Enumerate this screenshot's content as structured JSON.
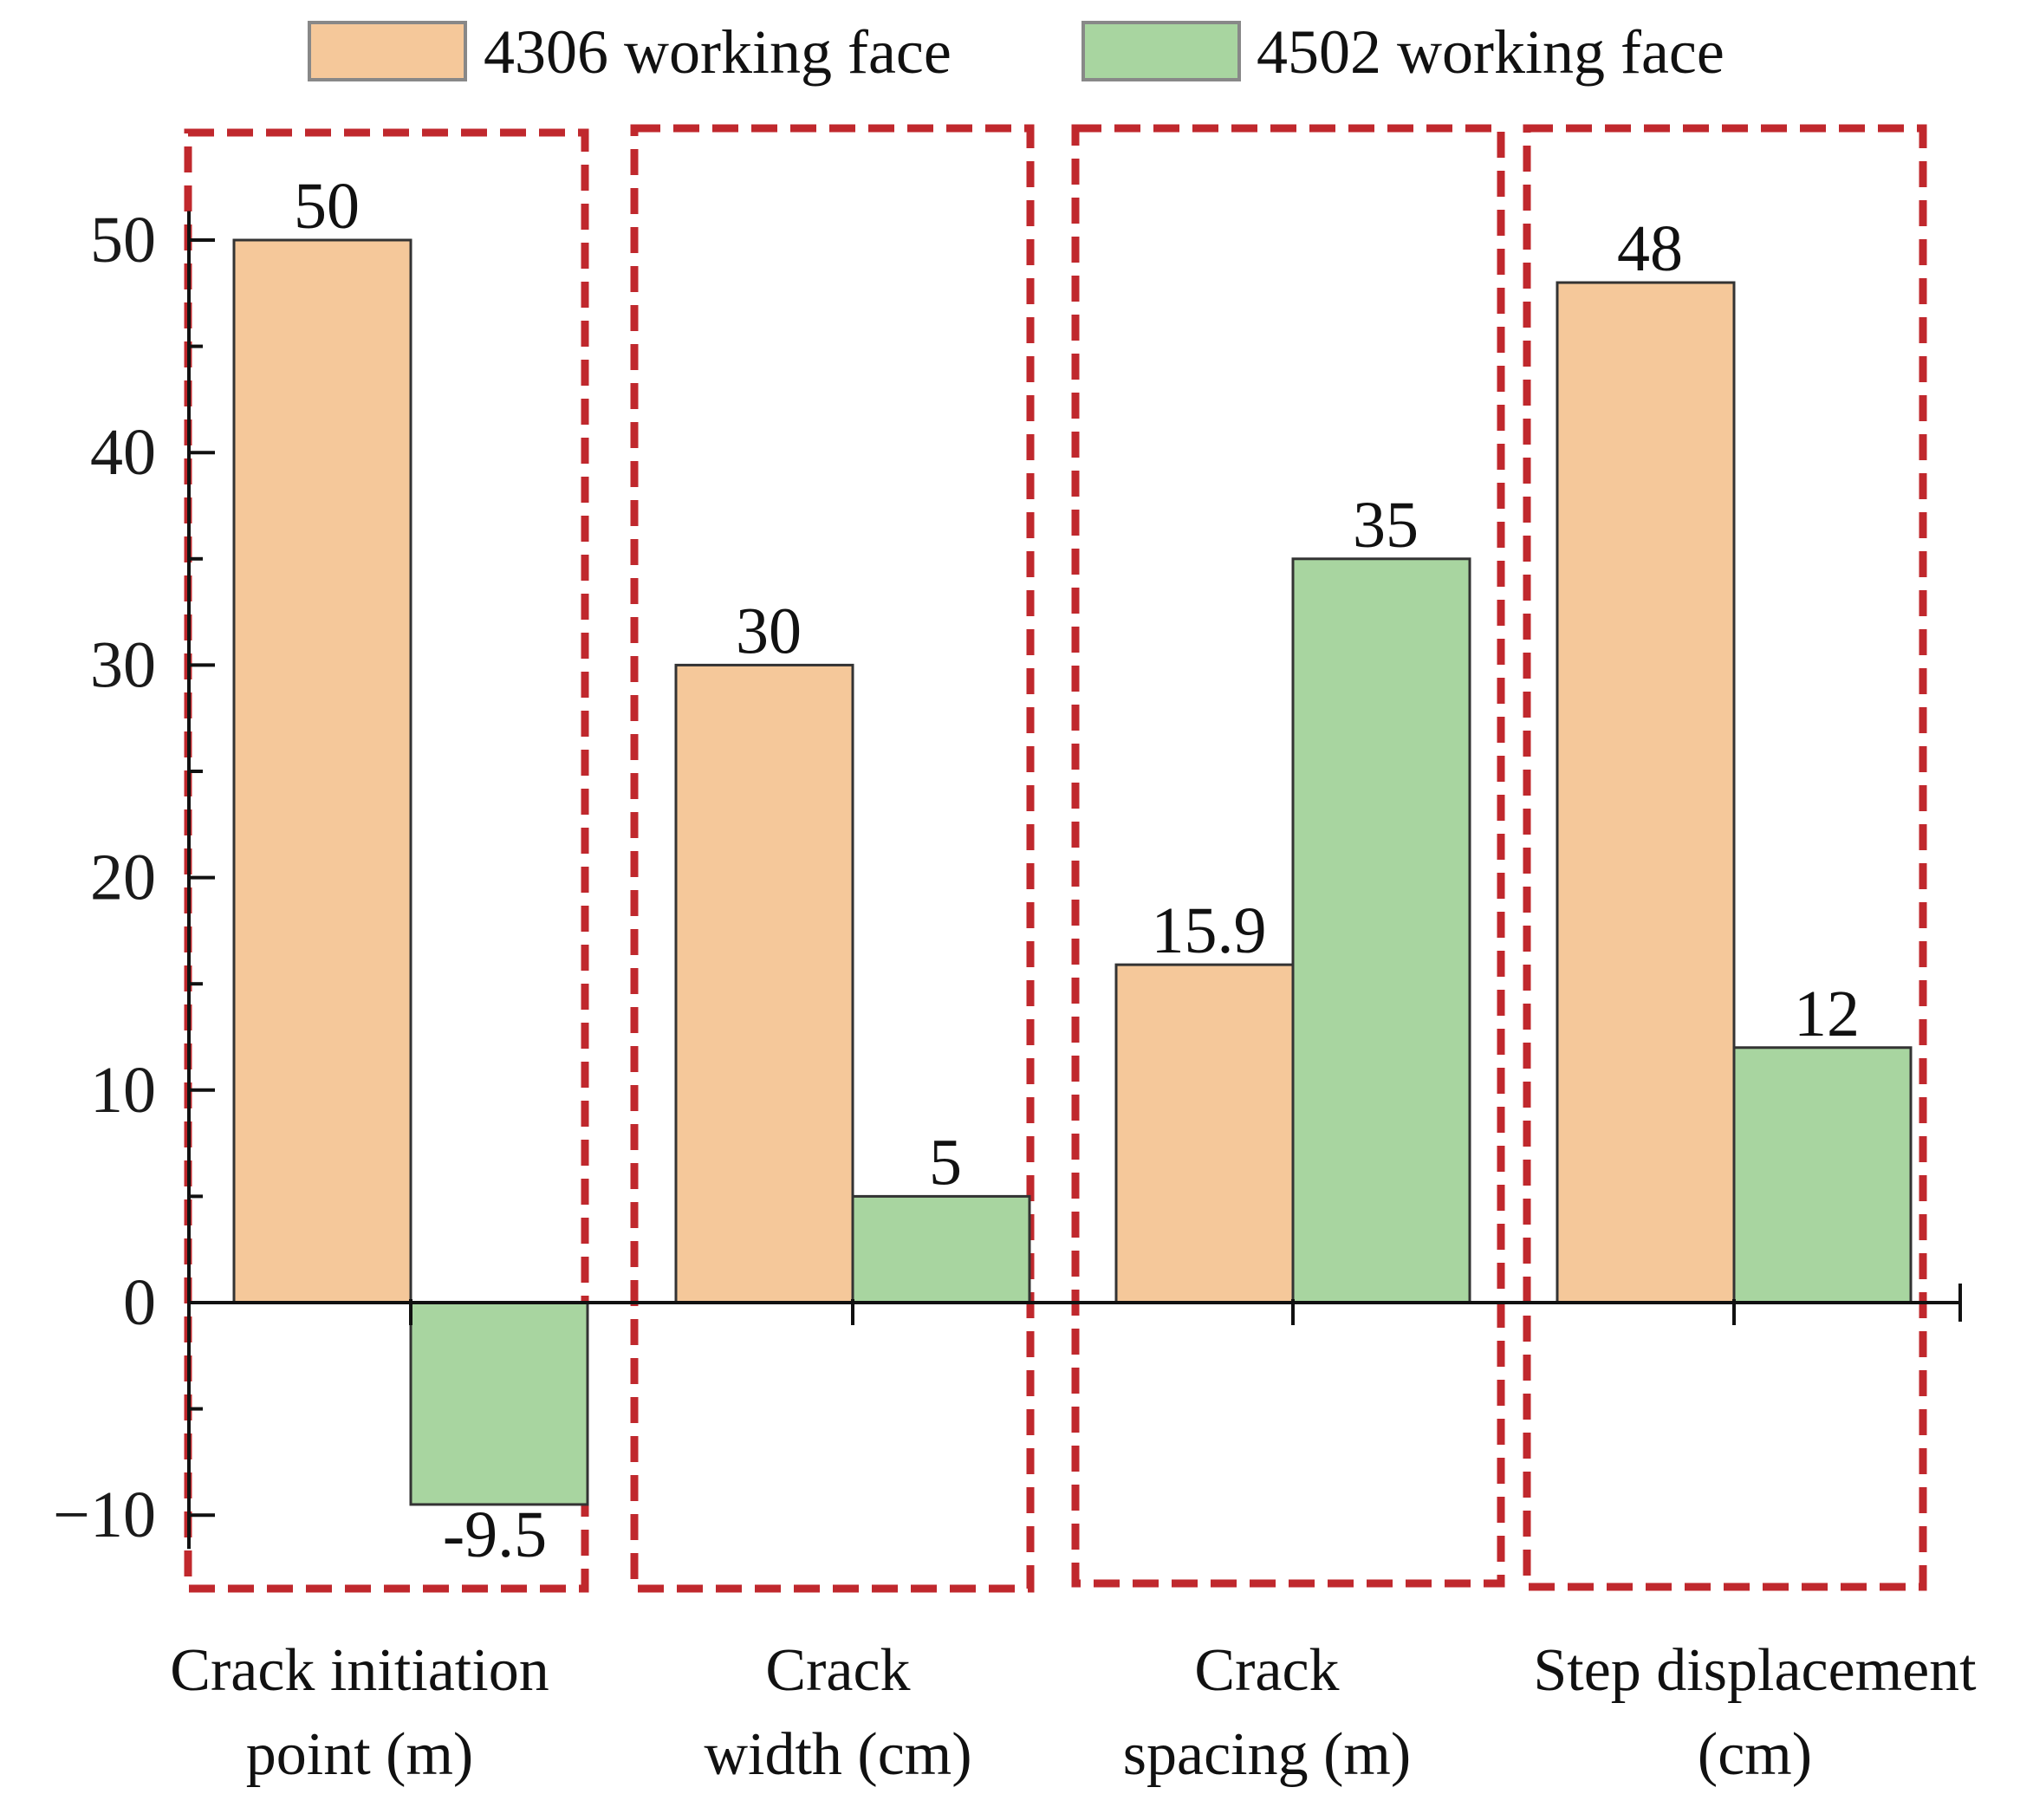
{
  "chart_data": {
    "type": "bar",
    "title": "",
    "xlabel": "",
    "ylabel": "",
    "ylim": [
      -12,
      53
    ],
    "yticks": [
      -10,
      0,
      10,
      20,
      30,
      40,
      50
    ],
    "ytick_labels": [
      "−10",
      "0",
      "10",
      "20",
      "30",
      "40",
      "50"
    ],
    "categories": [
      {
        "line1": "Crack initiation",
        "line2": "point (m)"
      },
      {
        "line1": "Crack",
        "line2": "width (cm)"
      },
      {
        "line1": "Crack",
        "line2": "spacing (m)"
      },
      {
        "line1": "Step displacement",
        "line2": "(cm)"
      }
    ],
    "series": [
      {
        "name": "4306 working face",
        "color": "#f5c89a",
        "values": [
          50,
          30,
          15.9,
          48
        ],
        "labels": [
          "50",
          "30",
          "15.9",
          "48"
        ]
      },
      {
        "name": "4502 working face",
        "color": "#a8d5a0",
        "values": [
          -9.5,
          5,
          35,
          12
        ],
        "labels": [
          "-9.5",
          "5",
          "35",
          "12"
        ]
      }
    ],
    "legend_position": "top",
    "group_highlight_color": "#c0282d",
    "grid": false
  }
}
